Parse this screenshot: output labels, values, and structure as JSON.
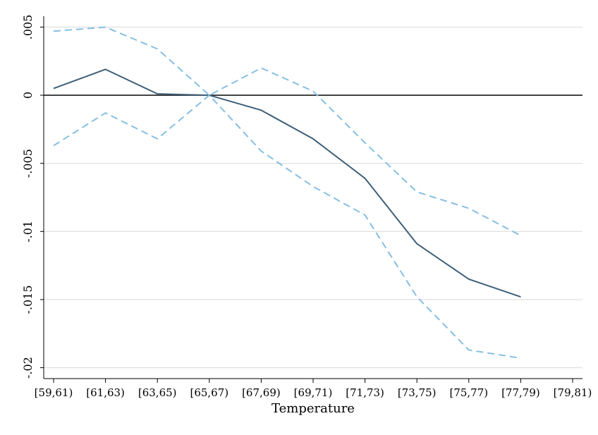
{
  "chart_data": {
    "type": "line",
    "title": "",
    "xlabel": "Temperature",
    "ylabel": "",
    "categories": [
      "[59,61)",
      "[61,63)",
      "[63,65)",
      "[65,67)",
      "[67,69)",
      "[69,71)",
      "[71,73)",
      "[73,75)",
      "[75,77)",
      "[77,79)",
      "[79,81)"
    ],
    "ylim": [
      -0.0208,
      0.0058
    ],
    "y_ticks": [
      0.005,
      0,
      -0.005,
      -0.01,
      -0.015,
      -0.02
    ],
    "y_tick_labels": [
      ".005",
      "0",
      "-.005",
      "-.01",
      "-.015",
      "-.02"
    ],
    "grid": true,
    "reference_line": 0,
    "colors": {
      "estimate": "#3e5f78",
      "confidence_band": "#86bfe3",
      "zero_line": "#1a1a1a",
      "grid": "#dddddd"
    },
    "series": [
      {
        "role": "estimate",
        "style": "solid",
        "values": [
          0.0005,
          0.0019,
          0.0001,
          0.0,
          -0.0011,
          -0.0032,
          -0.0061,
          -0.0109,
          -0.0135,
          -0.0148,
          null
        ]
      },
      {
        "role": "upper-ci",
        "style": "dashed",
        "values": [
          0.0047,
          0.005,
          0.0034,
          0.0,
          0.002,
          0.0003,
          -0.0035,
          -0.0071,
          -0.0083,
          -0.0103,
          null
        ]
      },
      {
        "role": "lower-ci",
        "style": "dashed",
        "values": [
          -0.0037,
          -0.0013,
          -0.0032,
          0.0,
          -0.0041,
          -0.0067,
          -0.0088,
          -0.0148,
          -0.0187,
          -0.0193,
          null
        ]
      }
    ]
  }
}
